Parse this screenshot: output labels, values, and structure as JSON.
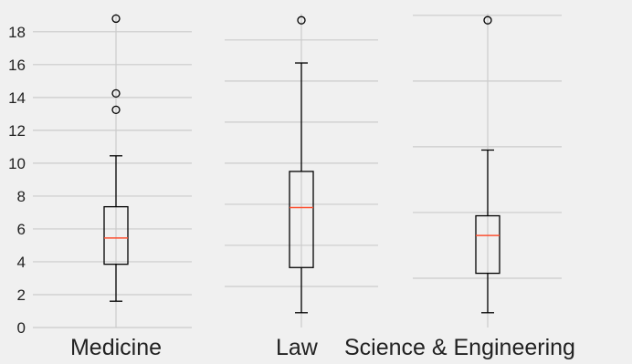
{
  "chart_data": {
    "type": "boxplot",
    "categories": [
      "Medicine",
      "Law",
      "Science & Engineering"
    ],
    "colors": {
      "background": "#f0f0f0",
      "grid": "#cbcbcb",
      "box": "#000000",
      "median": "#fc4f30"
    },
    "grid": true,
    "panels": [
      {
        "category": "Medicine",
        "box": {
          "whisker_low": 1.6,
          "q1": 3.85,
          "median": 5.45,
          "q3": 7.35,
          "whisker_high": 10.45
        },
        "outliers": [
          13.25,
          14.25,
          18.8
        ],
        "y_ticks": [
          0,
          2,
          4,
          6,
          8,
          10,
          12,
          14,
          16,
          18
        ],
        "ylim": [
          0,
          19.1
        ],
        "show_tick_labels": true
      },
      {
        "category": "Law",
        "box": {
          "whisker_low": 0.9,
          "q1": 3.65,
          "median": 7.3,
          "q3": 9.5,
          "whisker_high": 16.1
        },
        "outliers": [
          18.7
        ],
        "y_ticks": [
          2.5,
          5,
          7.5,
          10,
          12.5,
          15,
          17.5
        ],
        "ylim": [
          0,
          19.1
        ],
        "show_tick_labels": false
      },
      {
        "category": "Science & Engineering",
        "box": {
          "whisker_low": 0.9,
          "q1": 3.3,
          "median": 5.6,
          "q3": 6.8,
          "whisker_high": 10.8
        },
        "outliers": [
          18.7
        ],
        "y_ticks": [
          3,
          7,
          11,
          15,
          19
        ],
        "ylim": [
          0,
          19.1
        ],
        "show_tick_labels": false
      }
    ]
  }
}
